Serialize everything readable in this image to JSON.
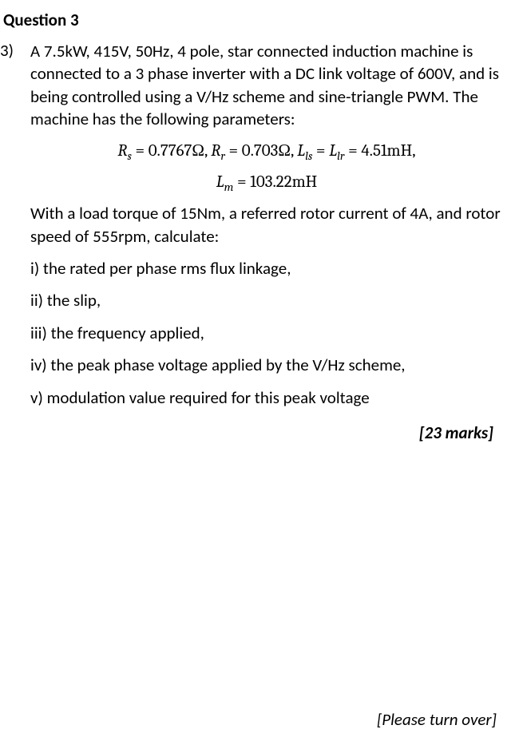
{
  "heading": "Question 3",
  "qnum": "3)",
  "intro": "A 7.5kW, 415V, 50Hz, 4 pole, star connected induction machine is connected to a 3 phase inverter with a DC link voltage of 600V, and is being controlled using a V/Hz scheme and sine-triangle PWM.  The machine has the following parameters:",
  "eq1_Rs_label": "R",
  "eq1_Rs_sub": "s",
  "eq1_Rs_val": " = 0.7767Ω, ",
  "eq1_Rr_label": "R",
  "eq1_Rr_sub": "r",
  "eq1_Rr_val": " = 0.703Ω, ",
  "eq1_Lls_label": "L",
  "eq1_Lls_sub": "ls",
  "eq1_mid": " = ",
  "eq1_Llr_label": "L",
  "eq1_Llr_sub": "lr",
  "eq1_tail": " = 4.51mH,",
  "eq2_Lm_label": "L",
  "eq2_Lm_sub": "m",
  "eq2_tail": " = 103.22mH",
  "with": "With a load torque of 15Nm, a referred rotor current of 4A, and rotor speed of 555rpm, calculate:",
  "part_i": "i) the rated per phase rms flux linkage,",
  "part_ii": "ii) the slip,",
  "part_iii": "iii) the frequency applied,",
  "part_iv": "iv) the peak phase voltage applied by the V/Hz scheme,",
  "part_v": "v) modulation value required for this peak voltage",
  "marks": "[23 marks]",
  "footer": "[Please turn over]"
}
